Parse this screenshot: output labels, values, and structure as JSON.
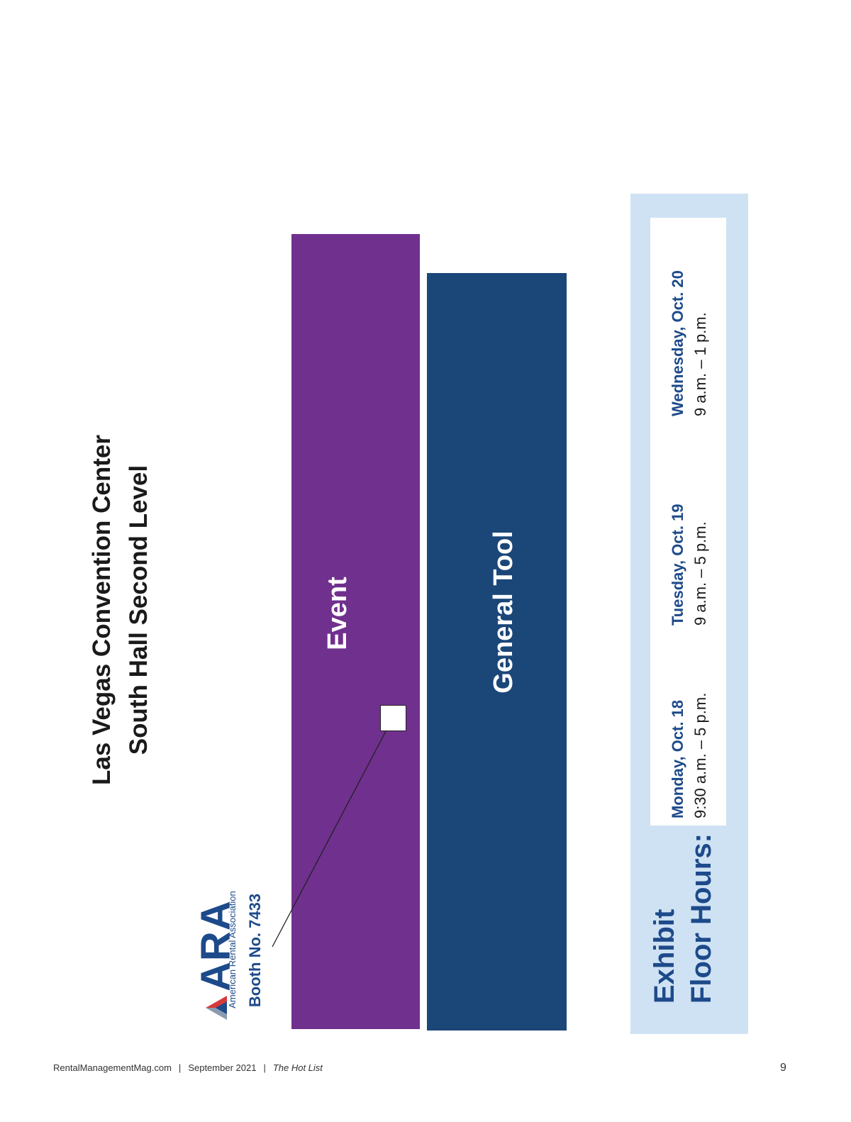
{
  "venue": {
    "line1": "Las Vegas Convention Center",
    "line2": "South Hall Second Level"
  },
  "ara": {
    "letters": "ARA",
    "name": "American Rental Association",
    "booth": "Booth No. 7433"
  },
  "sections": {
    "event": "Event",
    "general_tool": "General Tool"
  },
  "colors": {
    "event": "#70308e",
    "general_tool": "#1b4678",
    "accent_blue": "#1d4a8a",
    "panel_bg": "#cfe2f3"
  },
  "hours": {
    "title_line1": "Exhibit",
    "title_line2": "Floor Hours:",
    "days": [
      {
        "day": "Monday, Oct. 18",
        "time": "9:30 a.m. – 5 p.m."
      },
      {
        "day": "Tuesday, Oct. 19",
        "time": "9 a.m. – 5 p.m."
      },
      {
        "day": "Wednesday, Oct. 20",
        "time": "9 a.m. – 1 p.m."
      }
    ]
  },
  "footer": {
    "site": "RentalManagementMag.com",
    "issue": "September 2021",
    "publication": "The Hot List",
    "sep": "|",
    "page": "9"
  }
}
